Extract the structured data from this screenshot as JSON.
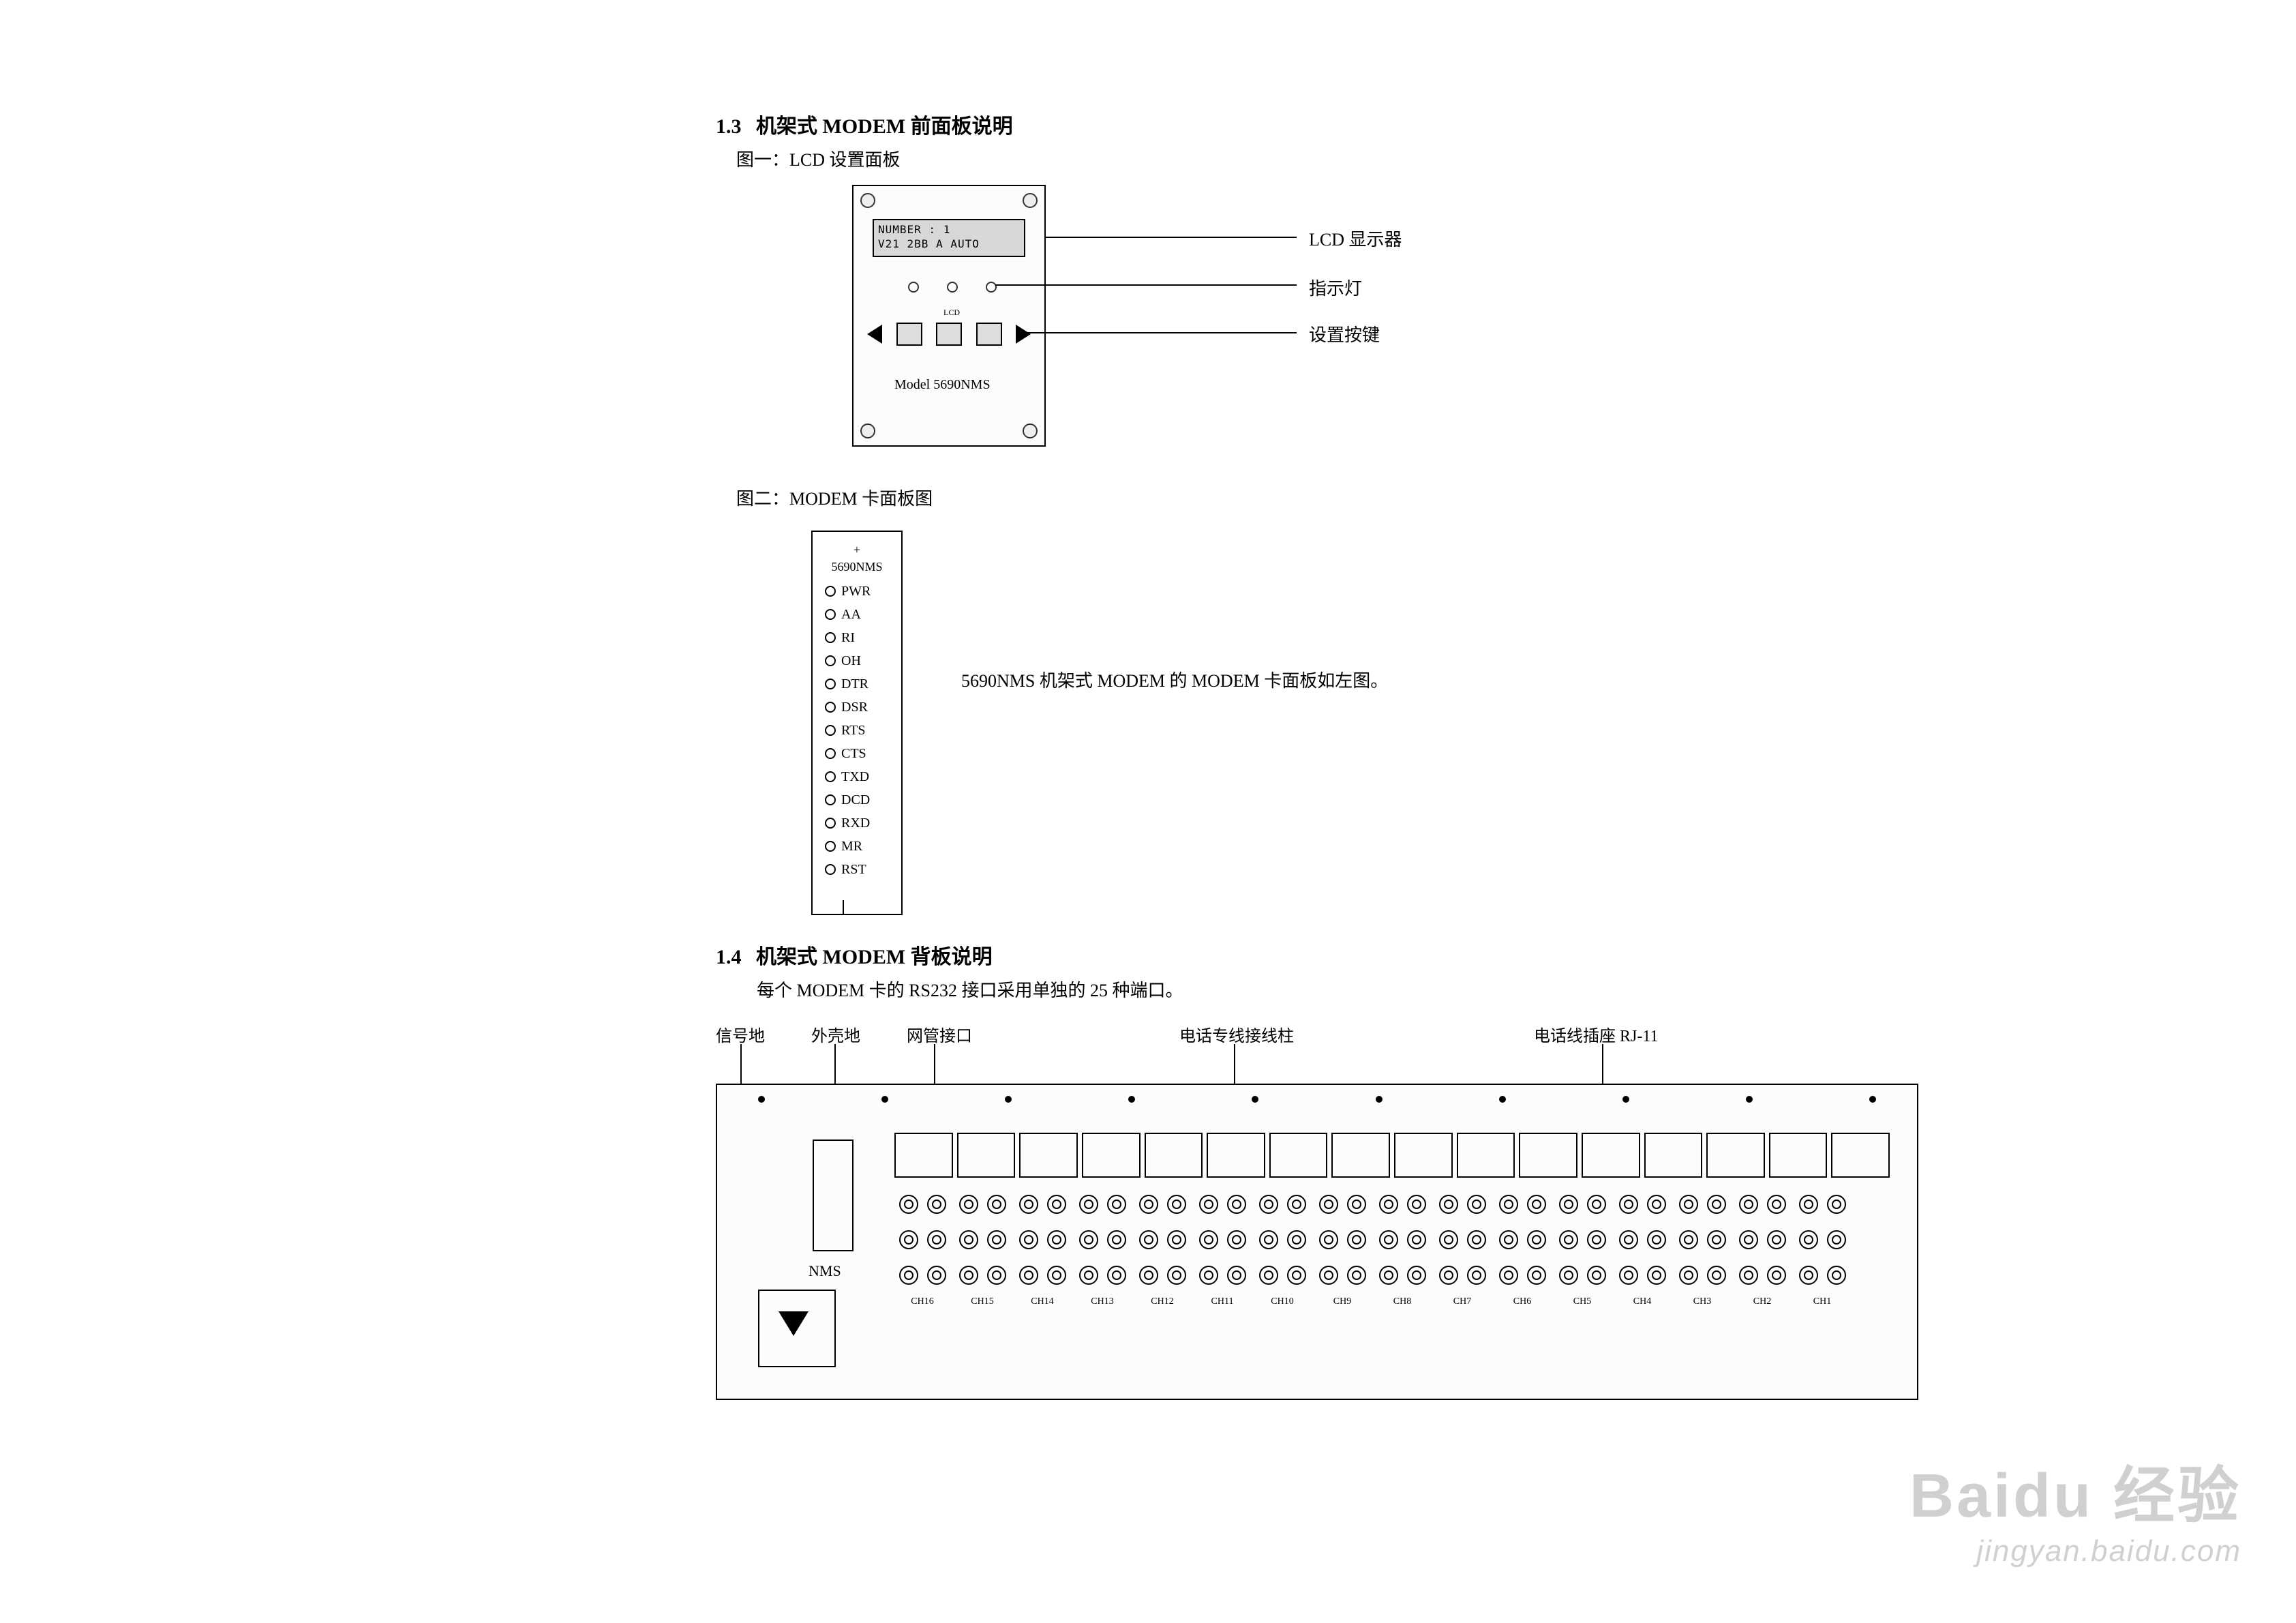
{
  "section13": {
    "number": "1.3",
    "title": "机架式 MODEM 前面板说明",
    "fig1_caption": "图一：LCD 设置面板",
    "fig2_caption": "图二：MODEM 卡面板图"
  },
  "front_panel": {
    "lcd_line1": "NUMBER : 1",
    "lcd_line2": "V21 2BB A AUTO",
    "lcd_label": "LCD",
    "model_text": "Model  5690NMS",
    "callout_lcd": "LCD 显示器",
    "callout_led": "指示灯",
    "callout_btn": "设置按键"
  },
  "modem_card": {
    "plus": "+",
    "model": "5690NMS",
    "leds": [
      "PWR",
      "AA",
      "RI",
      "OH",
      "DTR",
      "DSR",
      "RTS",
      "CTS",
      "TXD",
      "DCD",
      "RXD",
      "MR",
      "RST"
    ],
    "desc": "5690NMS 机架式 MODEM 的 MODEM 卡面板如左图。"
  },
  "section14": {
    "number": "1.4",
    "title": "机架式 MODEM 背板说明",
    "subtitle": "每个 MODEM 卡的 RS232 接口采用单独的 25 种端口。"
  },
  "back_panel": {
    "label_signal_gnd": "信号地",
    "label_chassis_gnd": "外壳地",
    "label_nms": "网管接口",
    "label_term": "电话专线接线柱",
    "label_rj11": "电话线插座 RJ-11",
    "nms_text": "NMS",
    "channels": [
      "CH16",
      "CH15",
      "CH14",
      "CH13",
      "CH12",
      "CH11",
      "CH10",
      "CH9",
      "CH8",
      "CH7",
      "CH6",
      "CH5",
      "CH4",
      "CH3",
      "CH2",
      "CH1"
    ]
  },
  "watermark": {
    "line1": "Baidu 经验",
    "line2": "jingyan.baidu.com"
  }
}
